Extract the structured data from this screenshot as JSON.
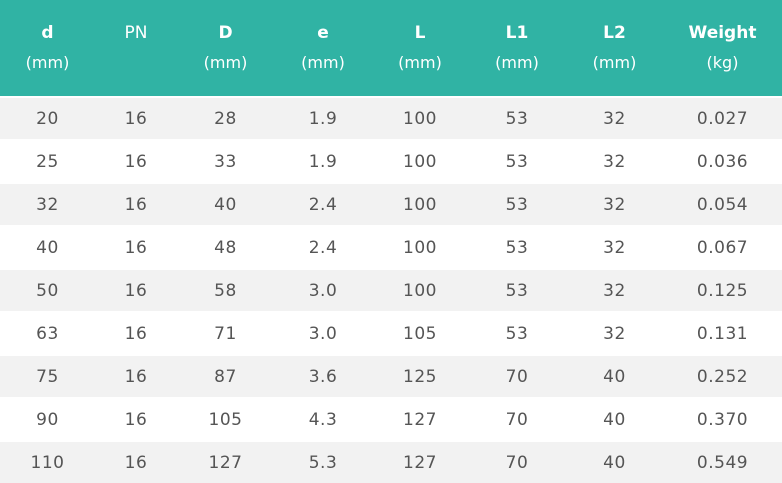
{
  "table": {
    "header_color": "#30b3a4",
    "stripe_color": "#f2f2f2",
    "columns": [
      {
        "name": "d",
        "unit": "(mm)",
        "bold": true
      },
      {
        "name": "PN",
        "unit": "",
        "bold": false
      },
      {
        "name": "D",
        "unit": "(mm)",
        "bold": true
      },
      {
        "name": "e",
        "unit": "(mm)",
        "bold": true
      },
      {
        "name": "L",
        "unit": "(mm)",
        "bold": true
      },
      {
        "name": "L1",
        "unit": "(mm)",
        "bold": true
      },
      {
        "name": "L2",
        "unit": "(mm)",
        "bold": true
      },
      {
        "name": "Weight",
        "unit": "(kg)",
        "bold": true
      }
    ],
    "rows": [
      [
        "20",
        "16",
        "28",
        "1.9",
        "100",
        "53",
        "32",
        "0.027"
      ],
      [
        "25",
        "16",
        "33",
        "1.9",
        "100",
        "53",
        "32",
        "0.036"
      ],
      [
        "32",
        "16",
        "40",
        "2.4",
        "100",
        "53",
        "32",
        "0.054"
      ],
      [
        "40",
        "16",
        "48",
        "2.4",
        "100",
        "53",
        "32",
        "0.067"
      ],
      [
        "50",
        "16",
        "58",
        "3.0",
        "100",
        "53",
        "32",
        "0.125"
      ],
      [
        "63",
        "16",
        "71",
        "3.0",
        "105",
        "53",
        "32",
        "0.131"
      ],
      [
        "75",
        "16",
        "87",
        "3.6",
        "125",
        "70",
        "40",
        "0.252"
      ],
      [
        "90",
        "16",
        "105",
        "4.3",
        "127",
        "70",
        "40",
        "0.370"
      ],
      [
        "110",
        "16",
        "127",
        "5.3",
        "127",
        "70",
        "40",
        "0.549"
      ]
    ]
  }
}
